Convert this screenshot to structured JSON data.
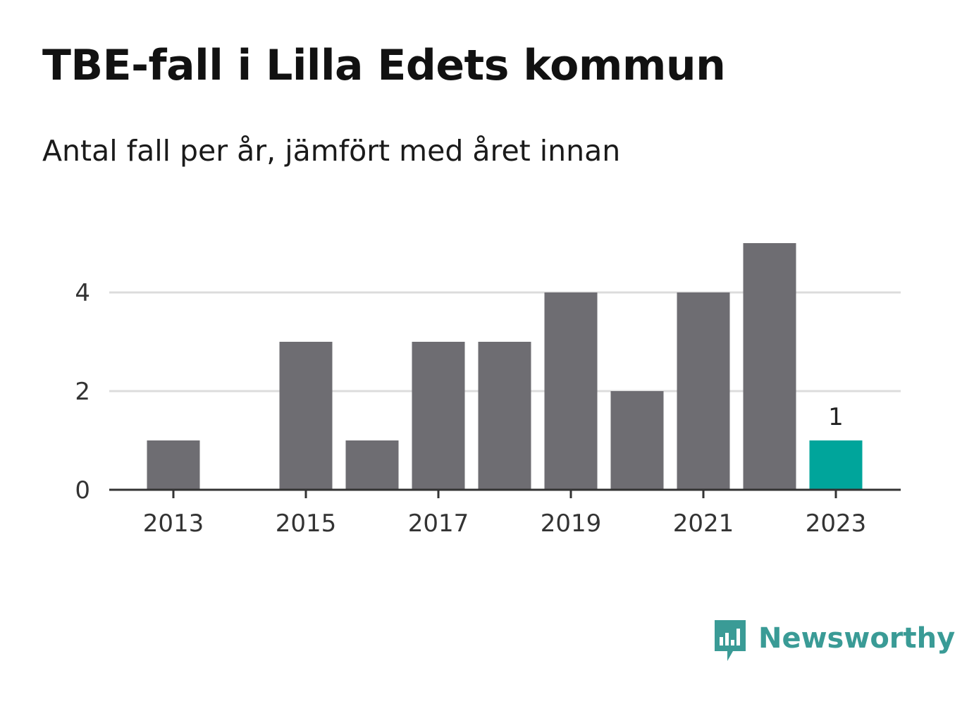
{
  "header": {
    "title": "TBE-fall i Lilla Edets kommun",
    "subtitle": "Antal fall per år, jämfört med året innan"
  },
  "brand": {
    "name": "Newsworthy",
    "icon": "newsworthy-logo-icon",
    "color": "#3a9b96"
  },
  "colors": {
    "bar": "#6e6d72",
    "highlight": "#00a59b",
    "grid": "#dcdcdc",
    "axis": "#333333"
  },
  "chart_data": {
    "type": "bar",
    "categories": [
      "2013",
      "2014",
      "2015",
      "2016",
      "2017",
      "2018",
      "2019",
      "2020",
      "2021",
      "2022",
      "2023"
    ],
    "values": [
      1,
      0,
      3,
      1,
      3,
      3,
      4,
      2,
      4,
      5,
      1
    ],
    "x_tick_labels": [
      "2013",
      "2015",
      "2017",
      "2019",
      "2021",
      "2023"
    ],
    "y_ticks": [
      0,
      2,
      4
    ],
    "ylim": [
      0,
      5
    ],
    "highlight_category": "2023",
    "data_labels": [
      {
        "category": "2023",
        "text": "1"
      }
    ],
    "grid": true,
    "legend": "none",
    "xlabel": "",
    "ylabel": ""
  }
}
